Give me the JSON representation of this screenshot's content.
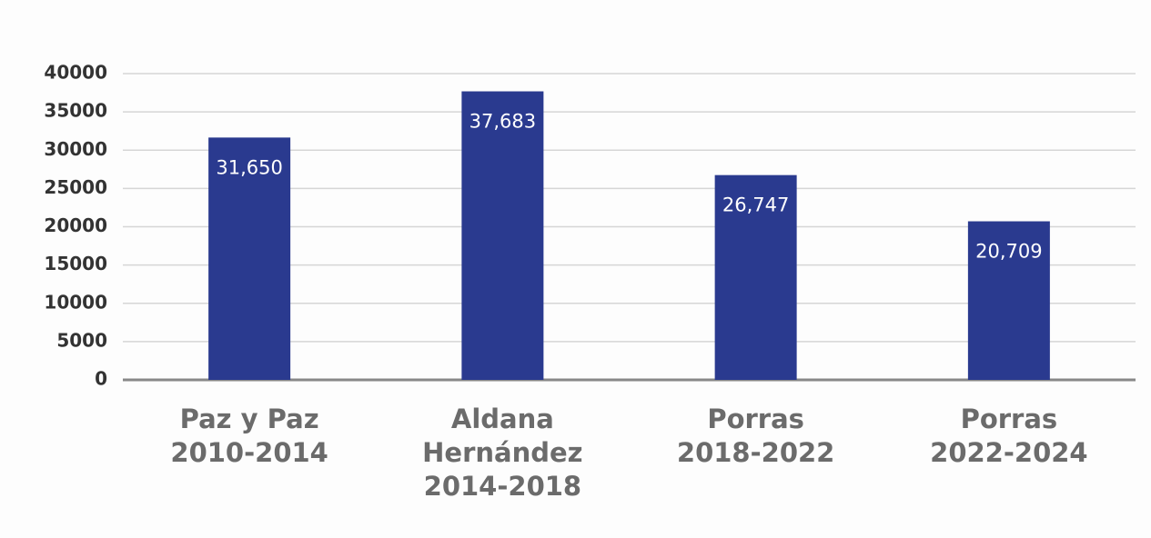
{
  "chart_data": {
    "type": "bar",
    "categories": [
      "Paz y Paz\n2010-2014",
      "Aldana\nHernández\n2014-2018",
      "Porras\n2018-2022",
      "Porras\n2022-2024"
    ],
    "values": [
      31650,
      37683,
      26747,
      20709
    ],
    "value_labels": [
      "31,650",
      "37,683",
      "26,747",
      "20,709"
    ],
    "color": "#2a3a8f",
    "ylim": [
      0,
      40000
    ],
    "yticks": [
      0,
      5000,
      10000,
      15000,
      20000,
      25000,
      30000,
      35000,
      40000
    ],
    "grid": true
  }
}
